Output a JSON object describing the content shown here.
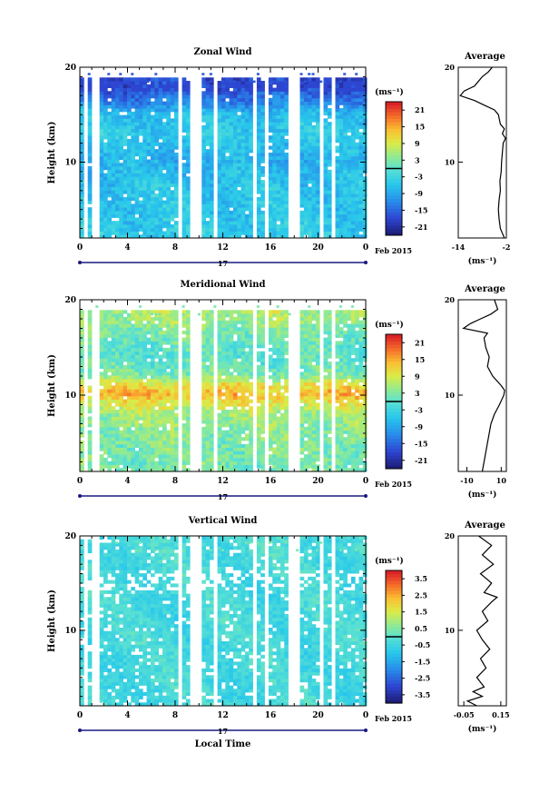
{
  "chart_data": [
    {
      "type": "heatmap",
      "title": "Zonal Wind",
      "ylabel": "Height (km)",
      "x_ticks": [
        "0",
        "4",
        "8",
        "12",
        "16",
        "20",
        "0"
      ],
      "y_ticks": [
        "10",
        "20"
      ],
      "xlim": [
        0,
        24
      ],
      "ylim": [
        2,
        20
      ],
      "date_day": "17",
      "date_label": "Feb 2015",
      "colorbar": {
        "label": "(ms⁻¹)",
        "ticks": [
          "21",
          "15",
          "9",
          "3",
          "-3",
          "-9",
          "-15",
          "-21"
        ],
        "range": [
          -24,
          24
        ]
      },
      "profile": {
        "title": "Average",
        "x_ticks": [
          "-14",
          "-2"
        ],
        "xlim": [
          -14,
          -2
        ],
        "xlabel": "(ms⁻¹)",
        "y_ticks": [
          "10",
          "20"
        ],
        "heights": [
          2,
          2.5,
          3,
          4,
          5,
          6,
          7,
          8,
          9,
          10,
          11,
          12,
          12.5,
          13,
          13.5,
          14,
          15,
          15.5,
          16,
          16.5,
          17,
          17.5,
          18,
          18.5,
          19,
          19.5,
          20
        ],
        "values": [
          -2.5,
          -3,
          -3.5,
          -3.8,
          -4,
          -3.8,
          -3.5,
          -3.6,
          -3.3,
          -3.2,
          -3,
          -2.8,
          -2.2,
          -3,
          -2.5,
          -3.5,
          -4,
          -5,
          -7.5,
          -10,
          -13.5,
          -12.5,
          -10,
          -9,
          -8,
          -6.5,
          -5.5
        ]
      }
    },
    {
      "type": "heatmap",
      "title": "Meridional Wind",
      "ylabel": "Height (km)",
      "x_ticks": [
        "0",
        "4",
        "8",
        "12",
        "16",
        "20",
        "0"
      ],
      "y_ticks": [
        "10",
        "20"
      ],
      "xlim": [
        0,
        24
      ],
      "ylim": [
        2,
        20
      ],
      "date_day": "17",
      "date_label": "Feb 2015",
      "colorbar": {
        "label": "(ms⁻¹)",
        "ticks": [
          "21",
          "15",
          "9",
          "3",
          "-3",
          "-9",
          "-15",
          "-21"
        ],
        "range": [
          -24,
          24
        ]
      },
      "profile": {
        "title": "Average",
        "x_ticks": [
          "-10",
          "10"
        ],
        "xlim": [
          -15,
          13
        ],
        "xlabel": "(ms⁻¹)",
        "y_ticks": [
          "10",
          "20"
        ],
        "heights": [
          2,
          2.5,
          3,
          4,
          5,
          6,
          7,
          8,
          9,
          10,
          10.5,
          11,
          12,
          13,
          14,
          15,
          16,
          16.5,
          17,
          17.5,
          18,
          18.5,
          19,
          20
        ],
        "values": [
          -1,
          -0.5,
          0,
          1,
          2,
          3,
          4,
          6,
          9,
          11.5,
          12,
          10,
          5,
          2,
          3,
          1,
          0,
          2,
          -12,
          -8,
          -2,
          4,
          8,
          6
        ]
      }
    },
    {
      "type": "heatmap",
      "title": "Vertical Wind",
      "ylabel": "Height (km)",
      "xlabel": "Local Time",
      "x_ticks": [
        "0",
        "4",
        "8",
        "12",
        "16",
        "20",
        "0"
      ],
      "y_ticks": [
        "10",
        "20"
      ],
      "xlim": [
        0,
        24
      ],
      "ylim": [
        2,
        20
      ],
      "date_day": "17",
      "date_label": "Feb 2015",
      "colorbar": {
        "label": "(ms⁻¹)",
        "ticks": [
          "3.5",
          "2.5",
          "1.5",
          "0.5",
          "-0.5",
          "-1.5",
          "-2.5",
          "-3.5"
        ],
        "range": [
          -4,
          4
        ]
      },
      "profile": {
        "title": "Average",
        "x_ticks": [
          "-0.05",
          "0.15"
        ],
        "xlim": [
          -0.08,
          0.18
        ],
        "xlabel": "(ms⁻¹)",
        "y_ticks": [
          "10",
          "20"
        ],
        "heights": [
          2,
          2.5,
          3,
          3.5,
          4,
          5,
          6,
          7,
          8,
          9,
          10,
          11,
          12,
          13,
          13.5,
          14,
          15,
          16,
          17,
          18,
          19,
          20
        ],
        "values": [
          0.02,
          -0.03,
          0.05,
          0.0,
          0.06,
          0.02,
          0.07,
          0.04,
          0.09,
          0.05,
          0.02,
          0.08,
          0.05,
          0.1,
          0.13,
          0.06,
          0.1,
          0.04,
          0.11,
          0.05,
          0.1,
          0.03
        ]
      }
    }
  ]
}
